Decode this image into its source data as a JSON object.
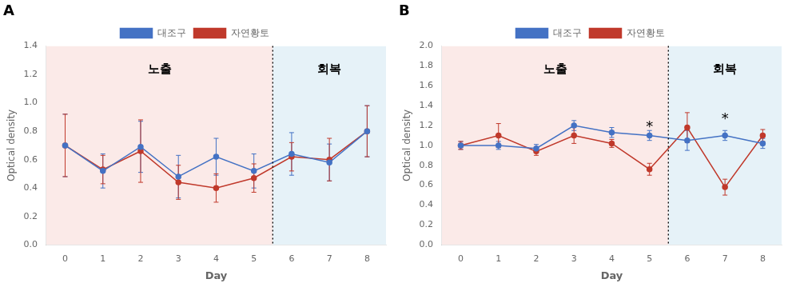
{
  "chart_data": [
    {
      "type": "line",
      "title": "A",
      "x": [
        0,
        1,
        2,
        3,
        4,
        5,
        6,
        7,
        8
      ],
      "series": [
        {
          "name": "대조구",
          "color": "#4472C4",
          "marker": "circle",
          "line_style": "solid",
          "values": [
            0.7,
            0.52,
            0.69,
            0.48,
            0.62,
            0.52,
            0.64,
            0.58,
            0.8
          ],
          "errors": [
            0.22,
            0.12,
            0.18,
            0.15,
            0.13,
            0.12,
            0.15,
            0.13,
            0.18
          ]
        },
        {
          "name": "자연황토",
          "color": "#C0392B",
          "marker": "circle",
          "line_style": "solid",
          "values": [
            0.7,
            0.53,
            0.66,
            0.44,
            0.4,
            0.47,
            0.62,
            0.6,
            0.8
          ],
          "errors": [
            0.22,
            0.1,
            0.22,
            0.12,
            0.1,
            0.1,
            0.1,
            0.15,
            0.18
          ]
        }
      ],
      "x_label": "Day",
      "y_label": "Optical density",
      "xlim": [
        -0.5,
        8.5
      ],
      "xticks": [
        0,
        1,
        2,
        3,
        4,
        5,
        6,
        7,
        8
      ],
      "ylim": [
        0.0,
        1.4
      ],
      "yticks": [
        {
          "value": 0,
          "label": "0.0"
        },
        0.2,
        0.4,
        0.6,
        0.8,
        {
          "value": 1,
          "label": "1.0"
        },
        1.2,
        1.4
      ],
      "regions": [
        {
          "name": "노출",
          "from": -0.5,
          "to": 5.5,
          "color": "#FBEAE8"
        },
        {
          "name": "회복",
          "from": 5.5,
          "to": 8.5,
          "color": "#E6F2F8"
        }
      ],
      "divider_x": 5.5,
      "annotations": [],
      "grid": false,
      "legend": "top"
    },
    {
      "type": "line",
      "title": "B",
      "x": [
        0,
        1,
        2,
        3,
        4,
        5,
        6,
        7,
        8
      ],
      "series": [
        {
          "name": "대조구",
          "color": "#4472C4",
          "marker": "circle",
          "line_style": "solid",
          "values": [
            1.0,
            1.0,
            0.97,
            1.2,
            1.13,
            1.1,
            1.05,
            1.1,
            1.02
          ],
          "errors": [
            0.04,
            0.04,
            0.04,
            0.05,
            0.05,
            0.05,
            0.1,
            0.05,
            0.05
          ]
        },
        {
          "name": "자연황토",
          "color": "#C0392B",
          "marker": "circle",
          "line_style": "solid",
          "values": [
            1.0,
            1.1,
            0.94,
            1.1,
            1.02,
            0.76,
            1.18,
            0.58,
            1.1
          ],
          "errors": [
            0.04,
            0.12,
            0.04,
            0.08,
            0.04,
            0.06,
            0.15,
            0.08,
            0.06
          ]
        }
      ],
      "x_label": "Day",
      "y_label": "Optical density",
      "xlim": [
        -0.5,
        8.5
      ],
      "xticks": [
        0,
        1,
        2,
        3,
        4,
        5,
        6,
        7,
        8
      ],
      "ylim": [
        0.0,
        2.0
      ],
      "yticks": [
        {
          "value": 0,
          "label": "0.0"
        },
        0.2,
        0.4,
        0.6,
        0.8,
        {
          "value": 1,
          "label": "1.0"
        },
        1.2,
        1.4,
        1.6,
        1.8,
        {
          "value": 2,
          "label": "2.0"
        }
      ],
      "regions": [
        {
          "name": "노출",
          "from": -0.5,
          "to": 5.5,
          "color": "#FBEAE8"
        },
        {
          "name": "회복",
          "from": 5.5,
          "to": 8.5,
          "color": "#E6F2F8"
        }
      ],
      "divider_x": 5.5,
      "annotations": [
        {
          "text": "*",
          "x": 5,
          "y": 1.16
        },
        {
          "text": "*",
          "x": 7,
          "y": 1.24
        }
      ],
      "grid": false,
      "legend": "top"
    }
  ]
}
